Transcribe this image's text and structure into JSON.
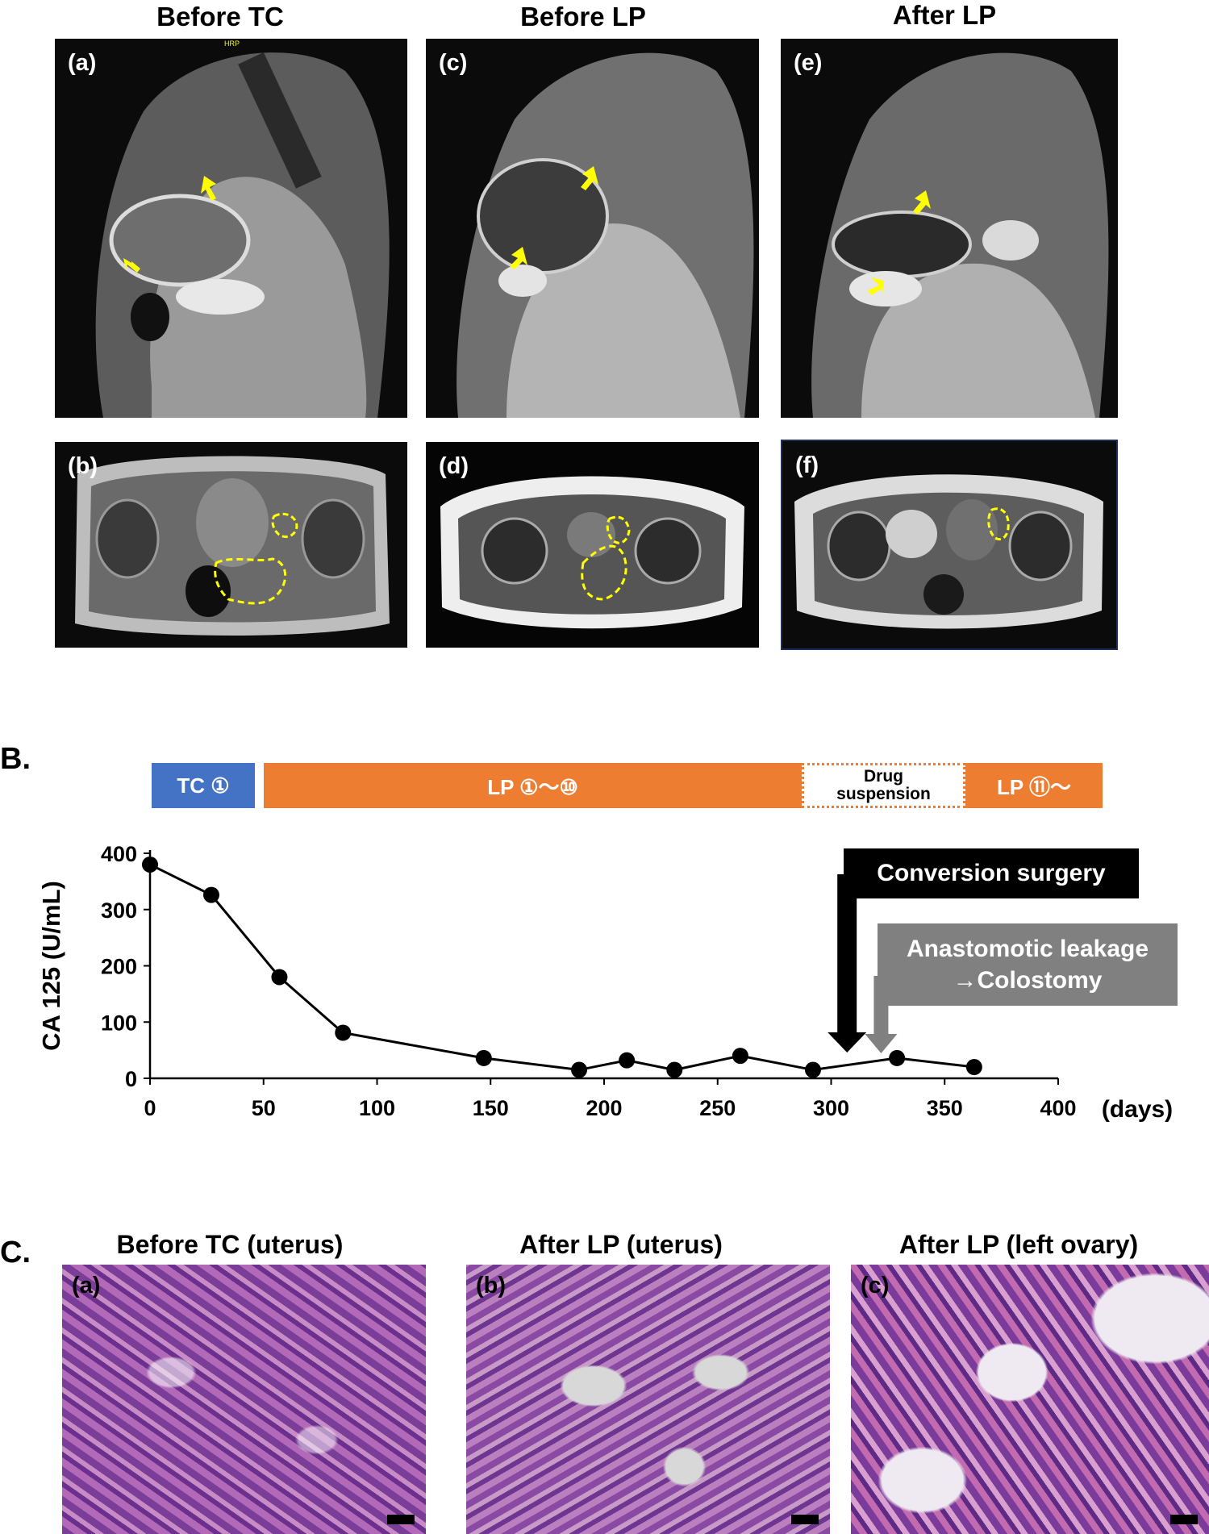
{
  "panelA": {
    "columns": [
      "Before TC",
      "Before LP",
      "After LP"
    ],
    "sagittal_labels": [
      "(a)",
      "(c)",
      "(e)"
    ],
    "axial_labels": [
      "(b)",
      "(d)",
      "(f)"
    ],
    "annotation_color": "#ffff00",
    "watermark": "HRP"
  },
  "panelB": {
    "letter": "B.",
    "timeline": [
      {
        "label": "TC ①",
        "color": "#4472c4"
      },
      {
        "label": "LP ①～⑩",
        "color": "#ed7d31"
      },
      {
        "label": "Drug\nsuspension",
        "color": "#ffffff"
      },
      {
        "label": "LP ⑪～",
        "color": "#ed7d31"
      }
    ],
    "callouts": {
      "surgery": {
        "label": "Conversion surgery",
        "color": "#000000",
        "day": 307
      },
      "leakage": {
        "line1": "Anastomotic leakage",
        "line2": "→Colostomy",
        "color": "#808080",
        "day": 322
      }
    }
  },
  "chart_data": {
    "type": "line",
    "title": "",
    "xlabel": "(days)",
    "ylabel": "CA 125 (U/mL)",
    "xlim": [
      0,
      400
    ],
    "ylim": [
      0,
      400
    ],
    "xticks": [
      0,
      50,
      100,
      150,
      200,
      250,
      300,
      350,
      400
    ],
    "yticks": [
      0,
      100,
      200,
      300,
      400
    ],
    "grid": false,
    "x": [
      0,
      27,
      57,
      85,
      147,
      189,
      210,
      231,
      260,
      292,
      329,
      363
    ],
    "y": [
      380,
      326,
      180,
      81,
      36,
      15,
      32,
      15,
      40,
      15,
      36,
      20
    ]
  },
  "panelC": {
    "letter": "C.",
    "titles": [
      "Before TC (uterus)",
      "After LP (uterus)",
      "After LP (left ovary)"
    ],
    "labels": [
      "(a)",
      "(b)",
      "(c)"
    ]
  }
}
